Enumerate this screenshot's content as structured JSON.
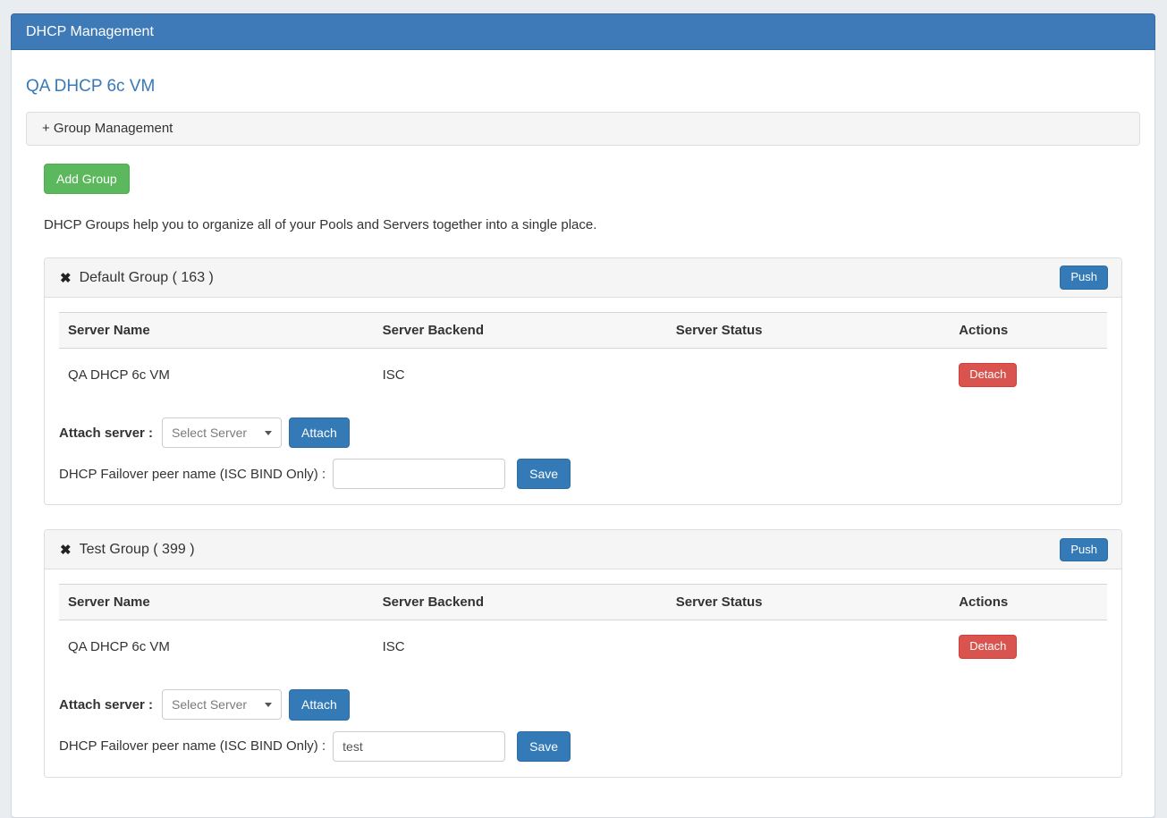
{
  "colors": {
    "header_blue": "#3e7ab8",
    "primary_button": "#337ab7",
    "success_button": "#5cb85c",
    "danger_button": "#d9534f",
    "title_link": "#3779b8",
    "panel_heading_bg": "#f5f5f5"
  },
  "header": {
    "title": "DHCP Management"
  },
  "page": {
    "server_title": "QA DHCP 6c VM"
  },
  "group_management": {
    "heading": "+ Group Management",
    "add_group_button": "Add Group",
    "description": "DHCP Groups help you to organize all of your Pools and Servers together into a single place."
  },
  "controls": {
    "push_button": "Push",
    "detach_button": "Detach",
    "attach_button": "Attach",
    "save_button": "Save",
    "attach_server_label": "Attach server :",
    "select_server_placeholder": "Select Server",
    "failover_label": "DHCP Failover peer name (ISC BIND Only) :",
    "remove_icon": "✖"
  },
  "table": {
    "headers": [
      "Server Name",
      "Server Backend",
      "Server Status",
      "Actions"
    ]
  },
  "groups": [
    {
      "title": "Default Group ( 163 )",
      "servers": [
        {
          "name": "QA DHCP 6c VM",
          "backend": "ISC",
          "status": ""
        }
      ],
      "failover_value": ""
    },
    {
      "title": "Test Group ( 399 )",
      "servers": [
        {
          "name": "QA DHCP 6c VM",
          "backend": "ISC",
          "status": ""
        }
      ],
      "failover_value": "test"
    }
  ]
}
